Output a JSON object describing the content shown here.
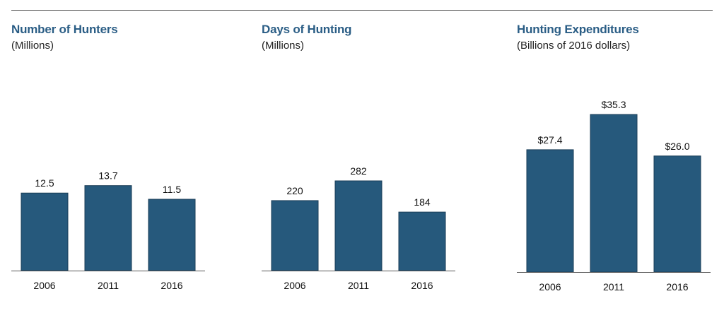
{
  "colors": {
    "bar": "#26597c",
    "title": "#2a5d85",
    "axis": "#555555"
  },
  "chart_data": [
    {
      "type": "bar",
      "title": "Number of Hunters",
      "subtitle": "(Millions)",
      "categories": [
        "2006",
        "2011",
        "2016"
      ],
      "values": [
        12.5,
        13.7,
        11.5
      ],
      "labels": [
        "12.5",
        "13.7",
        "11.5"
      ],
      "ylim": [
        0,
        35.3
      ],
      "xlabel": "",
      "ylabel": "",
      "grid": false
    },
    {
      "type": "bar",
      "title": "Days of Hunting",
      "subtitle": "(Millions)",
      "categories": [
        "2006",
        "2011",
        "2016"
      ],
      "values": [
        220,
        282,
        184
      ],
      "labels": [
        "220",
        "282",
        "184"
      ],
      "ylim": [
        0,
        282
      ],
      "xlabel": "",
      "ylabel": "",
      "grid": false
    },
    {
      "type": "bar",
      "title": "Hunting Expenditures",
      "subtitle": "(Billions of 2016 dollars)",
      "categories": [
        "2006",
        "2011",
        "2016"
      ],
      "values": [
        27.4,
        35.3,
        26.0
      ],
      "labels": [
        "$27.4",
        "$35.3",
        "$26.0"
      ],
      "ylim": [
        0,
        35.3
      ],
      "xlabel": "",
      "ylabel": "",
      "grid": false
    }
  ]
}
